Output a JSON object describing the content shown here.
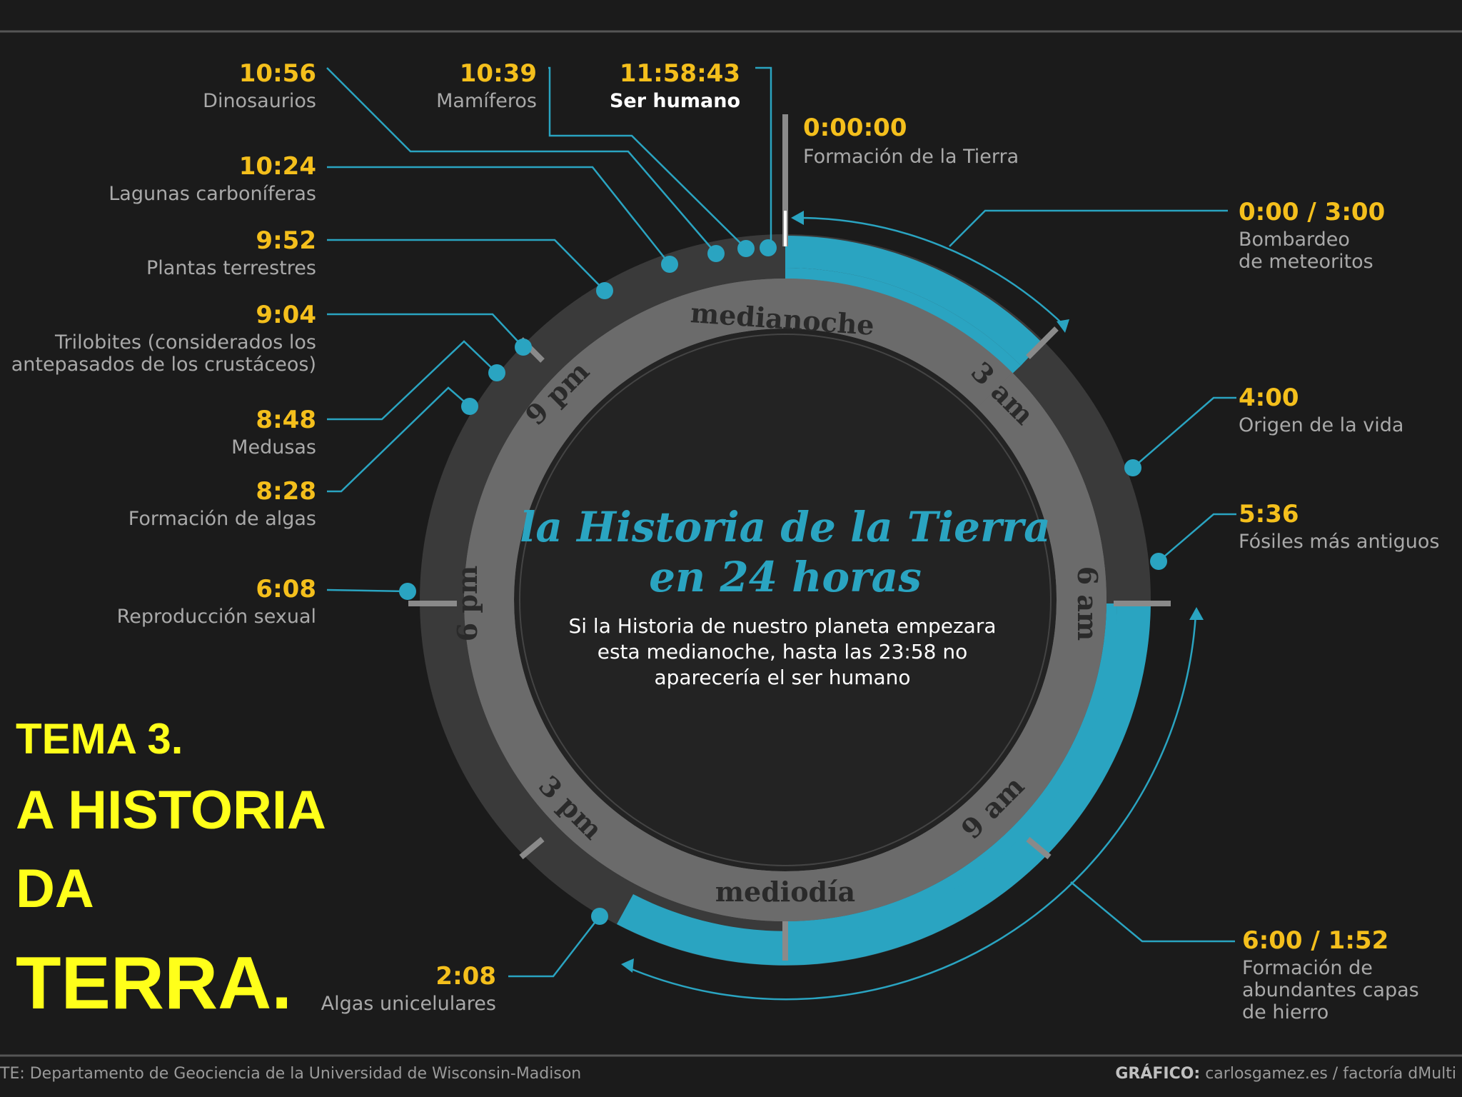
{
  "title": {
    "line1": "la Historia de la Tierra",
    "line2": "en 24 horas"
  },
  "subtitle": {
    "line1": "Si la Historia de nuestro planeta empezara",
    "line2": "esta medianoche, hasta las 23:58 no",
    "line3": "aparecería el ser humano"
  },
  "hours": {
    "midnight": "medianoche",
    "h3": "3 am",
    "h6": "6 am",
    "h9": "9 am",
    "noon": "mediodía",
    "h15": "3 pm",
    "h18": "6 pm",
    "h21": "9 pm"
  },
  "events": {
    "formacion": {
      "time": "0:00:00",
      "label": "Formación de la Tierra"
    },
    "bombardeo": {
      "time": "0:00 / 3:00",
      "label1": "Bombardeo",
      "label2": "de meteoritos"
    },
    "origen": {
      "time": "4:00",
      "label": "Origen de la vida"
    },
    "fosiles": {
      "time": "5:36",
      "label": "Fósiles más antiguos"
    },
    "hierro": {
      "time": "6:00 / 1:52",
      "label1": "Formación de",
      "label2": "abundantes capas",
      "label3": "de hierro"
    },
    "algas_uni": {
      "time": "2:08",
      "label": "Algas unicelulares"
    },
    "reproduccion": {
      "time": "6:08",
      "label": "Reproducción sexual"
    },
    "algas": {
      "time": "8:28",
      "label": "Formación de algas"
    },
    "medusas": {
      "time": "8:48",
      "label": "Medusas"
    },
    "trilobites": {
      "time": "9:04",
      "label1": "Trilobites (considerados los",
      "label2": "antepasados de los crustáceos)"
    },
    "plantas": {
      "time": "9:52",
      "label": "Plantas terrestres"
    },
    "lagunas": {
      "time": "10:24",
      "label": "Lagunas carboníferas"
    },
    "dinosaurios": {
      "time": "10:56",
      "label": "Dinosaurios"
    },
    "mamiferos": {
      "time": "10:39",
      "label": "Mamíferos"
    },
    "humano": {
      "time": "11:58:43",
      "label": "Ser humano"
    }
  },
  "tema": {
    "line1": "TEMA 3.",
    "line2": "A HISTORIA",
    "line3": "DA",
    "line4": "TERRA."
  },
  "footer": {
    "source": "TE: Departamento de Geociencia de la Universidad de Wisconsin-Madison",
    "credit_bold": "GRÁFICO:",
    "credit": " carlosgamez.es / factoría dMulti"
  },
  "colors": {
    "background": "#1b1b1b",
    "accent": "#2aa4c1",
    "time": "#f4bf1c",
    "tema": "#ffff1a"
  }
}
